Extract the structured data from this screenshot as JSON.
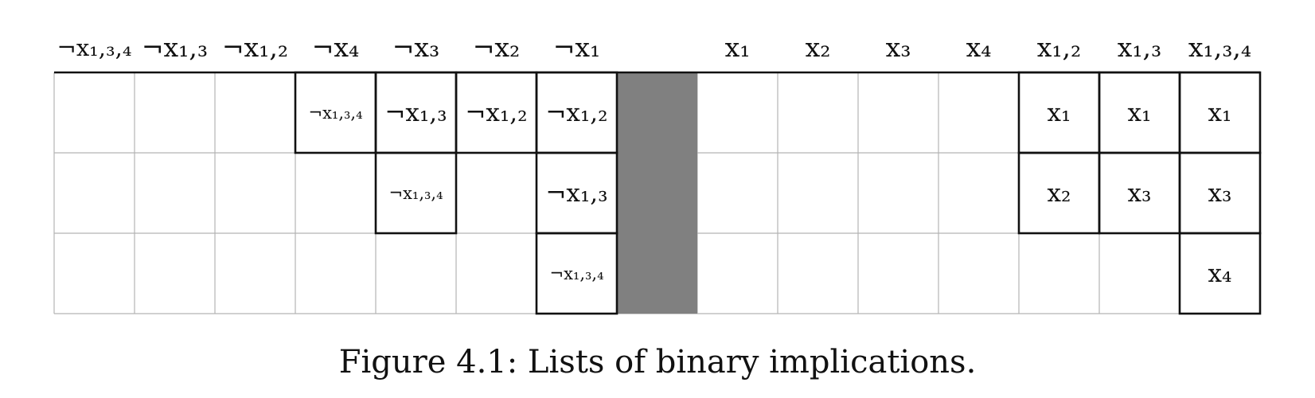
{
  "diagram": {
    "column_headers": [
      "¬x₁,₃,₄",
      "¬x₁,₃",
      "¬x₁,₂",
      "¬x₄",
      "¬x₃",
      "¬x₂",
      "¬x₁",
      "",
      "x₁",
      "x₂",
      "x₃",
      "x₄",
      "x₁,₂",
      "x₁,₃",
      "x₁,₃,₄"
    ],
    "separator_color": "#808080",
    "grid_color": "#b4b4b4",
    "outline_color": "#111111",
    "entries": [
      {
        "row": 0,
        "col": 3,
        "text": "¬x₁,₃,₄",
        "small": true
      },
      {
        "row": 0,
        "col": 4,
        "text": "¬x₁,₃",
        "small": false
      },
      {
        "row": 0,
        "col": 5,
        "text": "¬x₁,₂",
        "small": false
      },
      {
        "row": 0,
        "col": 6,
        "text": "¬x₁,₂",
        "small": false
      },
      {
        "row": 1,
        "col": 4,
        "text": "¬x₁,₃,₄",
        "small": true
      },
      {
        "row": 1,
        "col": 6,
        "text": "¬x₁,₃",
        "small": false
      },
      {
        "row": 2,
        "col": 6,
        "text": "¬x₁,₃,₄",
        "small": true
      },
      {
        "row": 0,
        "col": 12,
        "text": "x₁",
        "small": false
      },
      {
        "row": 0,
        "col": 13,
        "text": "x₁",
        "small": false
      },
      {
        "row": 0,
        "col": 14,
        "text": "x₁",
        "small": false
      },
      {
        "row": 1,
        "col": 12,
        "text": "x₂",
        "small": false
      },
      {
        "row": 1,
        "col": 13,
        "text": "x₃",
        "small": false
      },
      {
        "row": 1,
        "col": 14,
        "text": "x₃",
        "small": false
      },
      {
        "row": 2,
        "col": 14,
        "text": "x₄",
        "small": false
      }
    ]
  },
  "caption": "Figure 4.1: Lists of binary implications."
}
